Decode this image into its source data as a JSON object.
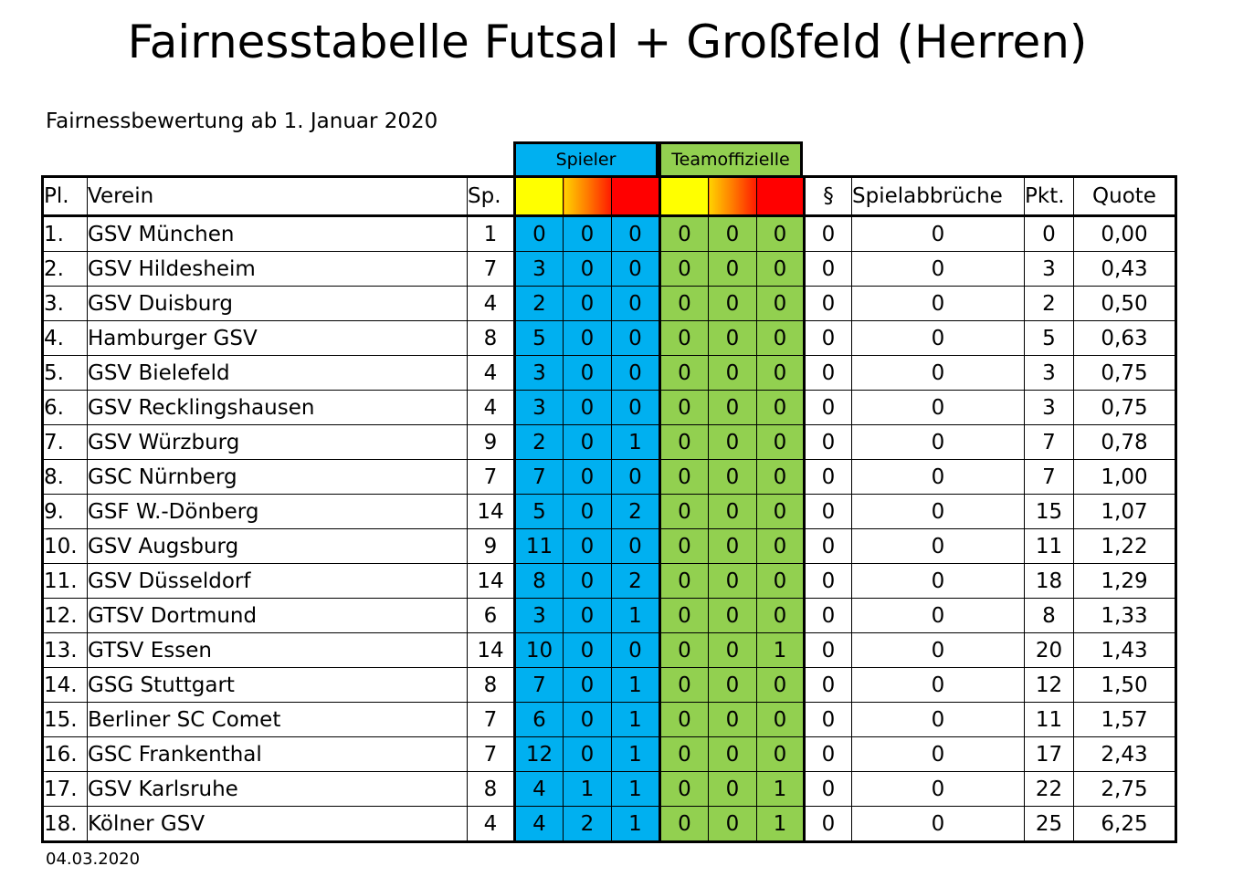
{
  "title": "Fairnesstabelle Futsal + Großfeld (Herren)",
  "subtitle": "Fairnessbewertung ab 1. Januar 2020",
  "footer_date": "04.03.2020",
  "groups": {
    "players": "Spieler",
    "officials": "Teamoffizielle"
  },
  "columns": {
    "place": "Pl.",
    "club": "Verein",
    "games": "Sp.",
    "paragraph": "§",
    "abandonments": "Spielabbrüche",
    "points": "Pkt.",
    "quota": "Quote"
  },
  "colors": {
    "players": "#00b0f0",
    "officials": "#92d050",
    "yellow_card": "#ffff00",
    "yellow_red_card": "#ff8000",
    "red_card": "#ff0000"
  },
  "rows": [
    {
      "place": "1.",
      "club": "GSV München",
      "games": "1",
      "p_y": "0",
      "p_yr": "0",
      "p_r": "0",
      "o_y": "0",
      "o_yr": "0",
      "o_r": "0",
      "par": "0",
      "abandon": "0",
      "points": "0",
      "quota": "0,00"
    },
    {
      "place": "2.",
      "club": "GSV Hildesheim",
      "games": "7",
      "p_y": "3",
      "p_yr": "0",
      "p_r": "0",
      "o_y": "0",
      "o_yr": "0",
      "o_r": "0",
      "par": "0",
      "abandon": "0",
      "points": "3",
      "quota": "0,43"
    },
    {
      "place": "3.",
      "club": "GSV Duisburg",
      "games": "4",
      "p_y": "2",
      "p_yr": "0",
      "p_r": "0",
      "o_y": "0",
      "o_yr": "0",
      "o_r": "0",
      "par": "0",
      "abandon": "0",
      "points": "2",
      "quota": "0,50"
    },
    {
      "place": "4.",
      "club": "Hamburger GSV",
      "games": "8",
      "p_y": "5",
      "p_yr": "0",
      "p_r": "0",
      "o_y": "0",
      "o_yr": "0",
      "o_r": "0",
      "par": "0",
      "abandon": "0",
      "points": "5",
      "quota": "0,63"
    },
    {
      "place": "5.",
      "club": "GSV Bielefeld",
      "games": "4",
      "p_y": "3",
      "p_yr": "0",
      "p_r": "0",
      "o_y": "0",
      "o_yr": "0",
      "o_r": "0",
      "par": "0",
      "abandon": "0",
      "points": "3",
      "quota": "0,75"
    },
    {
      "place": "6.",
      "club": "GSV Recklingshausen",
      "games": "4",
      "p_y": "3",
      "p_yr": "0",
      "p_r": "0",
      "o_y": "0",
      "o_yr": "0",
      "o_r": "0",
      "par": "0",
      "abandon": "0",
      "points": "3",
      "quota": "0,75"
    },
    {
      "place": "7.",
      "club": "GSV Würzburg",
      "games": "9",
      "p_y": "2",
      "p_yr": "0",
      "p_r": "1",
      "o_y": "0",
      "o_yr": "0",
      "o_r": "0",
      "par": "0",
      "abandon": "0",
      "points": "7",
      "quota": "0,78"
    },
    {
      "place": "8.",
      "club": "GSC Nürnberg",
      "games": "7",
      "p_y": "7",
      "p_yr": "0",
      "p_r": "0",
      "o_y": "0",
      "o_yr": "0",
      "o_r": "0",
      "par": "0",
      "abandon": "0",
      "points": "7",
      "quota": "1,00"
    },
    {
      "place": "9.",
      "club": "GSF W.-Dönberg",
      "games": "14",
      "p_y": "5",
      "p_yr": "0",
      "p_r": "2",
      "o_y": "0",
      "o_yr": "0",
      "o_r": "0",
      "par": "0",
      "abandon": "0",
      "points": "15",
      "quota": "1,07"
    },
    {
      "place": "10.",
      "club": "GSV Augsburg",
      "games": "9",
      "p_y": "11",
      "p_yr": "0",
      "p_r": "0",
      "o_y": "0",
      "o_yr": "0",
      "o_r": "0",
      "par": "0",
      "abandon": "0",
      "points": "11",
      "quota": "1,22"
    },
    {
      "place": "11.",
      "club": "GSV Düsseldorf",
      "games": "14",
      "p_y": "8",
      "p_yr": "0",
      "p_r": "2",
      "o_y": "0",
      "o_yr": "0",
      "o_r": "0",
      "par": "0",
      "abandon": "0",
      "points": "18",
      "quota": "1,29"
    },
    {
      "place": "12.",
      "club": "GTSV Dortmund",
      "games": "6",
      "p_y": "3",
      "p_yr": "0",
      "p_r": "1",
      "o_y": "0",
      "o_yr": "0",
      "o_r": "0",
      "par": "0",
      "abandon": "0",
      "points": "8",
      "quota": "1,33"
    },
    {
      "place": "13.",
      "club": "GTSV Essen",
      "games": "14",
      "p_y": "10",
      "p_yr": "0",
      "p_r": "0",
      "o_y": "0",
      "o_yr": "0",
      "o_r": "1",
      "par": "0",
      "abandon": "0",
      "points": "20",
      "quota": "1,43"
    },
    {
      "place": "14.",
      "club": "GSG Stuttgart",
      "games": "8",
      "p_y": "7",
      "p_yr": "0",
      "p_r": "1",
      "o_y": "0",
      "o_yr": "0",
      "o_r": "0",
      "par": "0",
      "abandon": "0",
      "points": "12",
      "quota": "1,50"
    },
    {
      "place": "15.",
      "club": "Berliner SC Comet",
      "games": "7",
      "p_y": "6",
      "p_yr": "0",
      "p_r": "1",
      "o_y": "0",
      "o_yr": "0",
      "o_r": "0",
      "par": "0",
      "abandon": "0",
      "points": "11",
      "quota": "1,57"
    },
    {
      "place": "16.",
      "club": "GSC Frankenthal",
      "games": "7",
      "p_y": "12",
      "p_yr": "0",
      "p_r": "1",
      "o_y": "0",
      "o_yr": "0",
      "o_r": "0",
      "par": "0",
      "abandon": "0",
      "points": "17",
      "quota": "2,43"
    },
    {
      "place": "17.",
      "club": "GSV Karlsruhe",
      "games": "8",
      "p_y": "4",
      "p_yr": "1",
      "p_r": "1",
      "o_y": "0",
      "o_yr": "0",
      "o_r": "1",
      "par": "0",
      "abandon": "0",
      "points": "22",
      "quota": "2,75"
    },
    {
      "place": "18.",
      "club": "Kölner GSV",
      "games": "4",
      "p_y": "4",
      "p_yr": "2",
      "p_r": "1",
      "o_y": "0",
      "o_yr": "0",
      "o_r": "1",
      "par": "0",
      "abandon": "0",
      "points": "25",
      "quota": "6,25"
    }
  ]
}
